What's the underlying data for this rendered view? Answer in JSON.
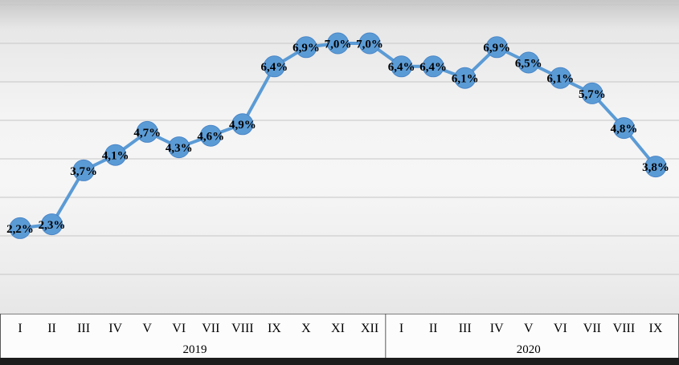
{
  "chart_data": {
    "type": "line",
    "title": "",
    "categories": [
      "I",
      "II",
      "III",
      "IV",
      "V",
      "VI",
      "VII",
      "VIII",
      "IX",
      "X",
      "XI",
      "XII",
      "I",
      "II",
      "III",
      "IV",
      "V",
      "VI",
      "VII",
      "VIII",
      "IX"
    ],
    "category_groups": [
      {
        "label": "2019",
        "count": 12
      },
      {
        "label": "2020",
        "count": 9
      }
    ],
    "values": [
      2.2,
      2.3,
      3.7,
      4.1,
      4.7,
      4.3,
      4.6,
      4.9,
      6.4,
      6.9,
      7.0,
      7.0,
      6.4,
      6.4,
      6.1,
      6.9,
      6.5,
      6.1,
      5.7,
      4.8,
      3.8
    ],
    "point_labels": [
      "2,2%",
      "2,3%",
      "3,7%",
      "4,1%",
      "4,7%",
      "4,3%",
      "4,6%",
      "4,9%",
      "6,4%",
      "6,9%",
      "7,0%",
      "7,0%",
      "6,4%",
      "6,4%",
      "6,1%",
      "6,9%",
      "6,5%",
      "6,1%",
      "5,7%",
      "4,8%",
      "3,8%"
    ],
    "ylim": [
      0,
      8
    ],
    "grid_step": 1,
    "grid": true,
    "legend_position": "none",
    "line_color": "#5B9BD5",
    "marker_color": "#5B9BD5",
    "marker_border_color": "#4a86c8",
    "label_color": "#000000",
    "axis_text_color": "#000000",
    "bottom_bar_color": "#1c1c1c"
  }
}
